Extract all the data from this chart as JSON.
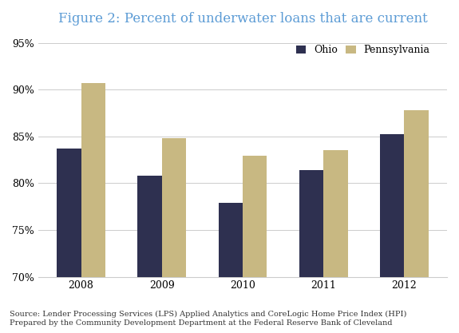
{
  "title": "Figure 2: Percent of underwater loans that are current",
  "categories": [
    "2008",
    "2009",
    "2010",
    "2011",
    "2012"
  ],
  "ohio_values": [
    83.7,
    80.8,
    77.9,
    81.4,
    85.2
  ],
  "pennsylvania_values": [
    90.7,
    84.8,
    82.9,
    83.5,
    87.8
  ],
  "ohio_color": "#2e3050",
  "pennsylvania_color": "#c8b882",
  "ylim": [
    70,
    96
  ],
  "yticks": [
    70,
    75,
    80,
    85,
    90,
    95
  ],
  "ytick_labels": [
    "70%",
    "75%",
    "80%",
    "85%",
    "90%",
    "95%"
  ],
  "legend_labels": [
    "Ohio",
    "Pennsylvania"
  ],
  "bar_width": 0.3,
  "source_text": "Source: Lender Processing Services (LPS) Applied Analytics and CoreLogic Home Price Index (HPI)\nPrepared by the Community Development Department at the Federal Reserve Bank of Cleveland",
  "title_color": "#5b9bd5",
  "background_color": "#ffffff",
  "grid_color": "#cccccc",
  "title_fontsize": 12,
  "tick_fontsize": 9,
  "legend_fontsize": 9,
  "source_fontsize": 7.0,
  "font_family": "DejaVu Serif"
}
